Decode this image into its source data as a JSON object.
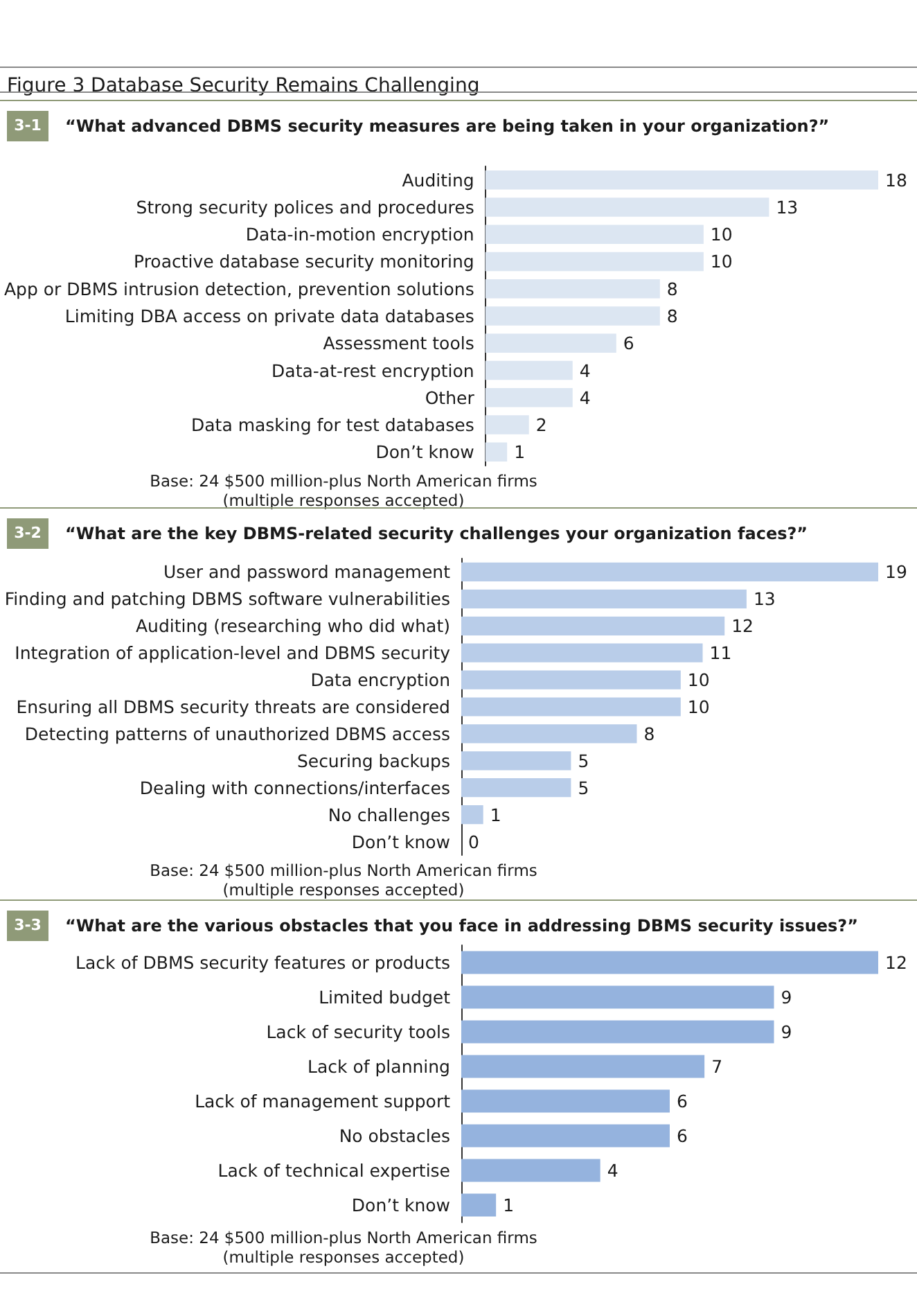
{
  "chart_data": [
    {
      "type": "bar",
      "orientation": "horizontal",
      "data_labels": true,
      "title": "3-1",
      "subtitle": "“What advanced DBMS security measures are being taken in your organization?”",
      "color": "#dce6f2",
      "categories": [
        "Auditing",
        "Strong security polices and procedures",
        "Data-in-motion encryption",
        "Proactive database security monitoring",
        "App or DBMS intrusion detection, prevention solutions",
        "Limiting DBA access on private data databases",
        "Assessment tools",
        "Data-at-rest encryption",
        "Other",
        "Data masking for test databases",
        "Don’t know"
      ],
      "values": [
        18,
        13,
        10,
        10,
        8,
        8,
        6,
        4,
        4,
        2,
        1
      ],
      "annotations": [
        "Figure 3 Database Security Remains Challenging",
        "Base: 24 $500 million-plus North American firms",
        "(multiple responses accepted)"
      ]
    },
    {
      "type": "bar",
      "orientation": "horizontal",
      "data_labels": true,
      "title": "3-2",
      "subtitle": "“What are the key DBMS-related security challenges your organization faces?”",
      "color": "#b9cde9",
      "categories": [
        "User and password management",
        "Finding and patching DBMS software vulnerabilities",
        "Auditing (researching who did what)",
        "Integration of application-level and DBMS security",
        "Data encryption",
        "Ensuring all DBMS security threats are considered",
        "Detecting patterns of unauthorized DBMS access",
        "Securing backups",
        "Dealing with connections/interfaces",
        "No challenges",
        "Don’t know"
      ],
      "values": [
        19,
        13,
        12,
        11,
        10,
        10,
        8,
        5,
        5,
        1,
        0
      ],
      "annotations": [
        "Base: 24 $500 million-plus North American firms",
        "(multiple responses accepted)"
      ]
    },
    {
      "type": "bar",
      "orientation": "horizontal",
      "data_labels": true,
      "title": "3-3",
      "subtitle": "“What are the various obstacles that you face in addressing DBMS security issues?”",
      "color": "#95b3de",
      "categories": [
        "Lack of DBMS security features or products",
        "Limited budget",
        "Lack of security tools",
        "Lack of planning",
        "Lack of management support",
        "No obstacles",
        "Lack of technical expertise",
        "Don’t know"
      ],
      "values": [
        12,
        9,
        9,
        7,
        6,
        6,
        4,
        1
      ],
      "annotations": [
        "Base: 24 $500 million-plus North American firms",
        "(multiple responses accepted)"
      ]
    }
  ]
}
